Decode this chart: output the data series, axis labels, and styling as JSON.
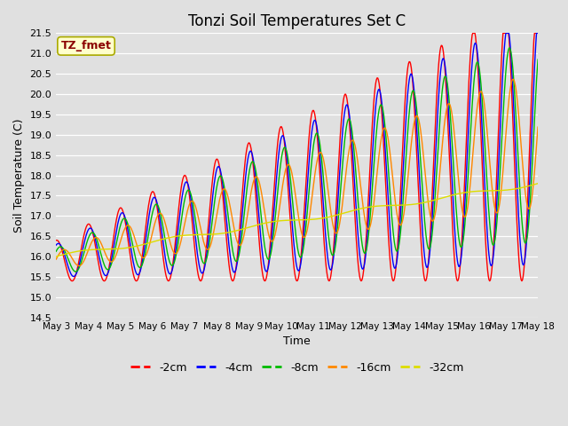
{
  "title": "Tonzi Soil Temperatures Set C",
  "xlabel": "Time",
  "ylabel": "Soil Temperature (C)",
  "ylim": [
    14.5,
    21.5
  ],
  "series_colors": {
    "-2cm": "#ff0000",
    "-4cm": "#0000ff",
    "-8cm": "#00bb00",
    "-16cm": "#ff8800",
    "-32cm": "#dddd00"
  },
  "annotation_text": "TZ_fmet",
  "annotation_color": "#8b0000",
  "annotation_bg": "#ffffcc",
  "annotation_border": "#aaaa00",
  "bg_color": "#e0e0e0",
  "x_tick_labels": [
    "May 3",
    "May 4",
    "May 5",
    "May 6",
    "May 7",
    "May 8",
    "May 9",
    "May 10",
    "May 11",
    "May 12",
    "May 13",
    "May 14",
    "May 15",
    "May 16",
    "May 17",
    "May 18"
  ],
  "yticks": [
    14.5,
    15.0,
    15.5,
    16.0,
    16.5,
    17.0,
    17.5,
    18.0,
    18.5,
    19.0,
    19.5,
    20.0,
    20.5,
    21.0,
    21.5
  ]
}
